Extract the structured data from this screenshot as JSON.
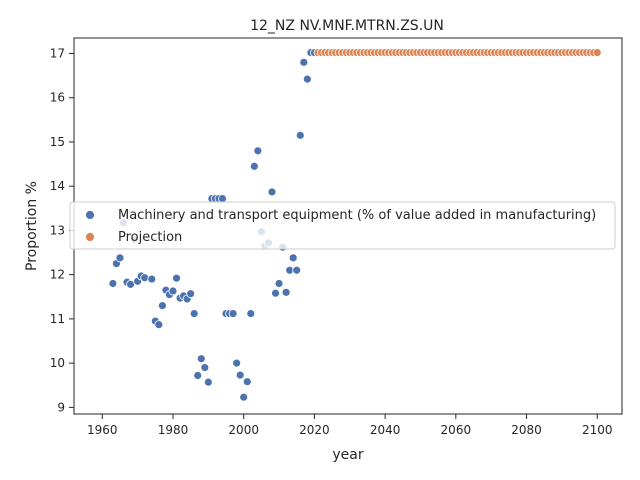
{
  "chart_data": {
    "type": "scatter",
    "title": "12_NZ NV.MNF.MTRN.ZS.UN",
    "xlabel": "year",
    "ylabel": "Proportion %",
    "xlim": [
      1952,
      2107
    ],
    "ylim": [
      8.85,
      17.35
    ],
    "xticks": [
      1960,
      1980,
      2000,
      2020,
      2040,
      2060,
      2080,
      2100
    ],
    "yticks": [
      9,
      10,
      11,
      12,
      13,
      14,
      15,
      16,
      17
    ],
    "legend_position": "center-left",
    "series": [
      {
        "name": "Machinery and transport equipment (% of value added in manufacturing)",
        "color": "#4c72b0",
        "points": [
          [
            1963,
            11.8
          ],
          [
            1964,
            12.25
          ],
          [
            1965,
            12.38
          ],
          [
            1966,
            13.17
          ],
          [
            1967,
            11.83
          ],
          [
            1968,
            11.78
          ],
          [
            1969,
            12.8
          ],
          [
            1970,
            11.85
          ],
          [
            1971,
            11.97
          ],
          [
            1972,
            11.93
          ],
          [
            1974,
            11.9
          ],
          [
            1975,
            10.95
          ],
          [
            1976,
            10.87
          ],
          [
            1977,
            11.3
          ],
          [
            1978,
            11.65
          ],
          [
            1979,
            11.55
          ],
          [
            1980,
            11.63
          ],
          [
            1981,
            11.92
          ],
          [
            1982,
            11.47
          ],
          [
            1983,
            11.52
          ],
          [
            1984,
            11.45
          ],
          [
            1985,
            11.57
          ],
          [
            1986,
            11.12
          ],
          [
            1987,
            9.72
          ],
          [
            1988,
            10.1
          ],
          [
            1989,
            9.9
          ],
          [
            1990,
            9.57
          ],
          [
            1991,
            13.72
          ],
          [
            1992,
            13.72
          ],
          [
            1993,
            13.72
          ],
          [
            1994,
            13.72
          ],
          [
            1995,
            11.12
          ],
          [
            1996,
            11.12
          ],
          [
            1997,
            11.12
          ],
          [
            1998,
            10.0
          ],
          [
            1999,
            9.73
          ],
          [
            2000,
            9.23
          ],
          [
            2001,
            9.58
          ],
          [
            2002,
            11.12
          ],
          [
            2003,
            14.45
          ],
          [
            2004,
            14.8
          ],
          [
            2005,
            12.97
          ],
          [
            2006,
            12.65
          ],
          [
            2007,
            12.72
          ],
          [
            2008,
            13.87
          ],
          [
            2009,
            11.58
          ],
          [
            2010,
            11.8
          ],
          [
            2011,
            12.62
          ],
          [
            2012,
            11.6
          ],
          [
            2013,
            12.1
          ],
          [
            2014,
            12.38
          ],
          [
            2015,
            12.1
          ],
          [
            2016,
            15.15
          ],
          [
            2017,
            16.8
          ],
          [
            2018,
            16.42
          ],
          [
            2019,
            17.02
          ],
          [
            2020,
            17.02
          ]
        ]
      },
      {
        "name": "Projection",
        "color": "#dd8452",
        "x_start": 2021,
        "x_end": 2100,
        "value": 17.02
      }
    ]
  }
}
